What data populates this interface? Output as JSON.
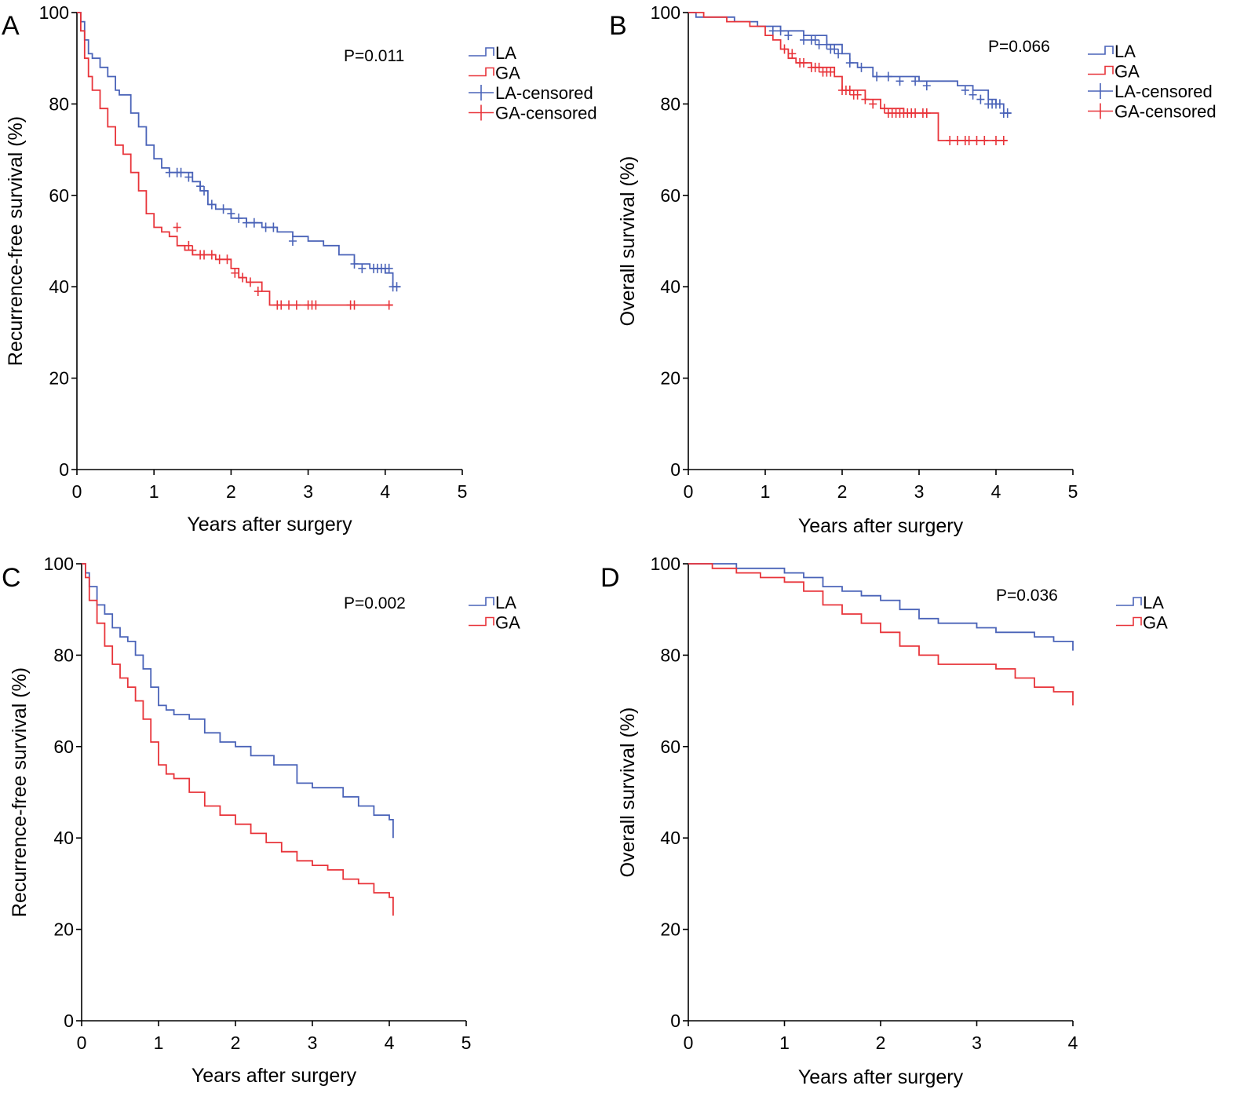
{
  "colors": {
    "LA": "#4a63b8",
    "GA": "#e8343a"
  },
  "chart_data": [
    {
      "id": "A",
      "type": "line",
      "panel_letter": "A",
      "xlabel": "Years after surgery",
      "ylabel": "Recurrence-free survival (%)",
      "xlim": [
        0,
        5
      ],
      "ylim": [
        0,
        100
      ],
      "xticks": [
        "0",
        "1",
        "2",
        "3",
        "4",
        "5"
      ],
      "yticks": [
        "0",
        "20",
        "40",
        "60",
        "80",
        "100"
      ],
      "annotation": "P=0.011",
      "legend": [
        "LA",
        "GA",
        "LA-censored",
        "GA-censored"
      ],
      "series": [
        {
          "name": "LA",
          "color_key": "LA",
          "x": [
            0,
            0.05,
            0.1,
            0.15,
            0.2,
            0.3,
            0.4,
            0.5,
            0.55,
            0.7,
            0.8,
            0.9,
            1.0,
            1.1,
            1.2,
            1.3,
            1.5,
            1.6,
            1.7,
            1.8,
            2.0,
            2.2,
            2.4,
            2.6,
            2.8,
            3.0,
            3.2,
            3.4,
            3.6,
            3.8,
            4.0,
            4.1,
            4.2
          ],
          "y": [
            100,
            98,
            94,
            91,
            90,
            88,
            86,
            83,
            82,
            78,
            75,
            71,
            68,
            66,
            65,
            65,
            63,
            61,
            58,
            57,
            55,
            54,
            53,
            52,
            51,
            50,
            49,
            47,
            45,
            44,
            43,
            40,
            40
          ],
          "censored": [
            1.2,
            1.3,
            1.35,
            1.45,
            1.6,
            1.65,
            1.75,
            1.9,
            2.0,
            2.1,
            2.2,
            2.3,
            2.45,
            2.55,
            2.8,
            3.6,
            3.7,
            3.85,
            3.9,
            3.95,
            4.0,
            4.05,
            4.1,
            4.15
          ],
          "censored_y": [
            65,
            65,
            65,
            64,
            62,
            61,
            58,
            57,
            56,
            55,
            54,
            54,
            53,
            53,
            50,
            45,
            44,
            44,
            44,
            44,
            44,
            44,
            40,
            40
          ]
        },
        {
          "name": "GA",
          "color_key": "GA",
          "x": [
            0,
            0.05,
            0.1,
            0.15,
            0.2,
            0.3,
            0.4,
            0.5,
            0.6,
            0.7,
            0.8,
            0.9,
            1.0,
            1.1,
            1.2,
            1.3,
            1.4,
            1.5,
            1.6,
            1.8,
            2.0,
            2.1,
            2.2,
            2.4,
            2.5,
            2.8,
            3.2,
            3.8,
            4.1
          ],
          "y": [
            100,
            96,
            90,
            86,
            83,
            79,
            75,
            71,
            69,
            65,
            61,
            56,
            53,
            52,
            51,
            49,
            48,
            47,
            47,
            46,
            44,
            42,
            41,
            39,
            36,
            36,
            36,
            36,
            36
          ],
          "censored": [
            1.3,
            1.45,
            1.5,
            1.6,
            1.65,
            1.75,
            1.85,
            1.95,
            2.05,
            2.15,
            2.25,
            2.35,
            2.6,
            2.65,
            2.75,
            2.85,
            3.0,
            3.05,
            3.1,
            3.55,
            3.6,
            4.05
          ],
          "censored_y": [
            53,
            49,
            48,
            47,
            47,
            47,
            46,
            46,
            43,
            42,
            41,
            39,
            36,
            36,
            36,
            36,
            36,
            36,
            36,
            36,
            36,
            36
          ]
        }
      ]
    },
    {
      "id": "B",
      "type": "line",
      "panel_letter": "B",
      "xlabel": "Years after surgery",
      "ylabel": "Overall survival (%)",
      "xlim": [
        0,
        5
      ],
      "ylim": [
        0,
        100
      ],
      "xticks": [
        "0",
        "1",
        "2",
        "3",
        "4",
        "5"
      ],
      "yticks": [
        "0",
        "20",
        "40",
        "60",
        "80",
        "100"
      ],
      "annotation": "P=0.066",
      "legend": [
        "LA",
        "GA",
        "LA-censored",
        "GA-censored"
      ],
      "series": [
        {
          "name": "LA",
          "color_key": "LA",
          "x": [
            0,
            0.1,
            0.3,
            0.6,
            0.9,
            1.0,
            1.2,
            1.5,
            1.8,
            2.0,
            2.1,
            2.2,
            2.4,
            2.6,
            3.0,
            3.5,
            3.7,
            3.9,
            4.0,
            4.1,
            4.2
          ],
          "y": [
            100,
            99,
            99,
            98,
            97,
            97,
            96,
            95,
            93,
            91,
            89,
            88,
            86,
            86,
            85,
            84,
            83,
            81,
            80,
            78,
            78
          ],
          "censored": [
            1.1,
            1.2,
            1.3,
            1.5,
            1.6,
            1.65,
            1.7,
            1.8,
            1.85,
            1.9,
            1.95,
            2.1,
            2.25,
            2.45,
            2.6,
            2.75,
            2.95,
            3.1,
            3.6,
            3.7,
            3.8,
            3.9,
            3.95,
            4.0,
            4.05,
            4.1,
            4.15
          ],
          "censored_y": [
            96,
            96,
            95,
            94,
            94,
            94,
            93,
            93,
            92,
            92,
            91,
            89,
            88,
            86,
            86,
            85,
            85,
            84,
            83,
            82,
            81,
            80,
            80,
            80,
            80,
            78,
            78
          ]
        },
        {
          "name": "GA",
          "color_key": "GA",
          "x": [
            0,
            0.2,
            0.5,
            0.8,
            1.0,
            1.1,
            1.2,
            1.3,
            1.4,
            1.6,
            1.9,
            2.0,
            2.3,
            2.5,
            2.8,
            3.2,
            3.25,
            4.15
          ],
          "y": [
            100,
            99,
            98,
            97,
            95,
            94,
            92,
            90,
            89,
            88,
            86,
            83,
            81,
            79,
            78,
            78,
            72,
            72
          ],
          "censored": [
            1.25,
            1.35,
            1.45,
            1.5,
            1.6,
            1.65,
            1.7,
            1.75,
            1.8,
            1.85,
            2.0,
            2.05,
            2.1,
            2.15,
            2.2,
            2.3,
            2.4,
            2.55,
            2.6,
            2.65,
            2.7,
            2.75,
            2.8,
            2.85,
            2.9,
            2.95,
            3.05,
            3.1,
            3.4,
            3.5,
            3.6,
            3.65,
            3.75,
            3.85,
            4.0,
            4.1
          ],
          "censored_y": [
            92,
            91,
            89,
            89,
            88,
            88,
            88,
            87,
            87,
            87,
            83,
            83,
            83,
            82,
            82,
            81,
            80,
            79,
            78,
            78,
            78,
            78,
            78,
            78,
            78,
            78,
            78,
            78,
            72,
            72,
            72,
            72,
            72,
            72,
            72,
            72
          ]
        }
      ]
    },
    {
      "id": "C",
      "type": "line",
      "panel_letter": "C",
      "xlabel": "Years after surgery",
      "ylabel": "Recurrence-free survival (%)",
      "xlim": [
        0,
        5
      ],
      "ylim": [
        0,
        100
      ],
      "xticks": [
        "0",
        "1",
        "2",
        "3",
        "4",
        "5"
      ],
      "yticks": [
        "0",
        "20",
        "40",
        "60",
        "80",
        "100"
      ],
      "annotation": "P=0.002",
      "legend": [
        "LA",
        "GA"
      ],
      "series": [
        {
          "name": "LA",
          "color_key": "LA",
          "x": [
            0,
            0.05,
            0.1,
            0.2,
            0.3,
            0.4,
            0.5,
            0.6,
            0.7,
            0.8,
            0.9,
            1.0,
            1.1,
            1.2,
            1.4,
            1.6,
            1.8,
            2.0,
            2.2,
            2.5,
            2.8,
            3.0,
            3.4,
            3.6,
            3.8,
            4.0,
            4.05
          ],
          "y": [
            100,
            98,
            95,
            91,
            89,
            86,
            84,
            83,
            80,
            77,
            73,
            69,
            68,
            67,
            66,
            63,
            61,
            60,
            58,
            56,
            52,
            51,
            49,
            47,
            45,
            44,
            40
          ],
          "censored": [],
          "censored_y": []
        },
        {
          "name": "GA",
          "color_key": "GA",
          "x": [
            0,
            0.05,
            0.1,
            0.2,
            0.3,
            0.4,
            0.5,
            0.6,
            0.7,
            0.8,
            0.9,
            1.0,
            1.1,
            1.2,
            1.4,
            1.6,
            1.8,
            2.0,
            2.2,
            2.4,
            2.6,
            2.8,
            3.0,
            3.2,
            3.4,
            3.6,
            3.8,
            4.0,
            4.05
          ],
          "y": [
            100,
            97,
            92,
            87,
            82,
            78,
            75,
            73,
            70,
            66,
            61,
            56,
            54,
            53,
            50,
            47,
            45,
            43,
            41,
            39,
            37,
            35,
            34,
            33,
            31,
            30,
            28,
            27,
            23
          ],
          "censored": [],
          "censored_y": []
        }
      ]
    },
    {
      "id": "D",
      "type": "line",
      "panel_letter": "D",
      "xlabel": "Years after surgery",
      "ylabel": "Overall survival (%)",
      "xlim": [
        0,
        4
      ],
      "ylim": [
        0,
        100
      ],
      "xticks": [
        "0",
        "1",
        "2",
        "3",
        "4"
      ],
      "yticks": [
        "0",
        "20",
        "40",
        "60",
        "80",
        "100"
      ],
      "annotation": "P=0.036",
      "legend": [
        "LA",
        "GA"
      ],
      "series": [
        {
          "name": "LA",
          "color_key": "LA",
          "x": [
            0,
            0.25,
            0.5,
            0.75,
            1.0,
            1.2,
            1.4,
            1.6,
            1.8,
            2.0,
            2.2,
            2.4,
            2.6,
            2.8,
            3.0,
            3.2,
            3.4,
            3.6,
            3.8,
            4.0
          ],
          "y": [
            100,
            100,
            99,
            99,
            98,
            97,
            95,
            94,
            93,
            92,
            90,
            88,
            87,
            87,
            86,
            85,
            85,
            84,
            83,
            81
          ],
          "censored": [],
          "censored_y": []
        },
        {
          "name": "GA",
          "color_key": "GA",
          "x": [
            0,
            0.25,
            0.5,
            0.75,
            1.0,
            1.2,
            1.4,
            1.6,
            1.8,
            2.0,
            2.2,
            2.4,
            2.6,
            2.8,
            3.0,
            3.2,
            3.4,
            3.6,
            3.8,
            4.0
          ],
          "y": [
            100,
            99,
            98,
            97,
            96,
            94,
            91,
            89,
            87,
            85,
            82,
            80,
            78,
            78,
            78,
            77,
            75,
            73,
            72,
            69
          ],
          "censored": [],
          "censored_y": []
        }
      ]
    }
  ]
}
